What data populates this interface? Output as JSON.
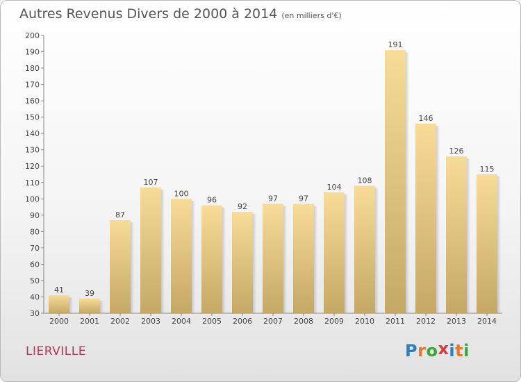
{
  "title": "Autres Revenus Divers de 2000 à 2014",
  "unit": "(en milliers d'€)",
  "city": "LIERVILLE",
  "logo": {
    "letters": [
      "P",
      "r",
      "o",
      "x",
      "i",
      "t",
      "i"
    ],
    "colors": [
      "#2a7fc4",
      "#e4792b",
      "#3ba63d",
      "#d63a3a",
      "#2a7fc4",
      "#e4792b",
      "#3ba63d"
    ]
  },
  "chart_data": {
    "type": "bar",
    "categories": [
      "2000",
      "2001",
      "2002",
      "2003",
      "2004",
      "2005",
      "2006",
      "2007",
      "2008",
      "2009",
      "2010",
      "2011",
      "2012",
      "2013",
      "2014"
    ],
    "values": [
      41,
      39,
      87,
      107,
      100,
      96,
      92,
      97,
      97,
      104,
      108,
      191,
      146,
      126,
      115
    ],
    "ylim": [
      30,
      200
    ],
    "ytick_step": 10,
    "grid": false,
    "bar_color": "#e6c98a"
  }
}
